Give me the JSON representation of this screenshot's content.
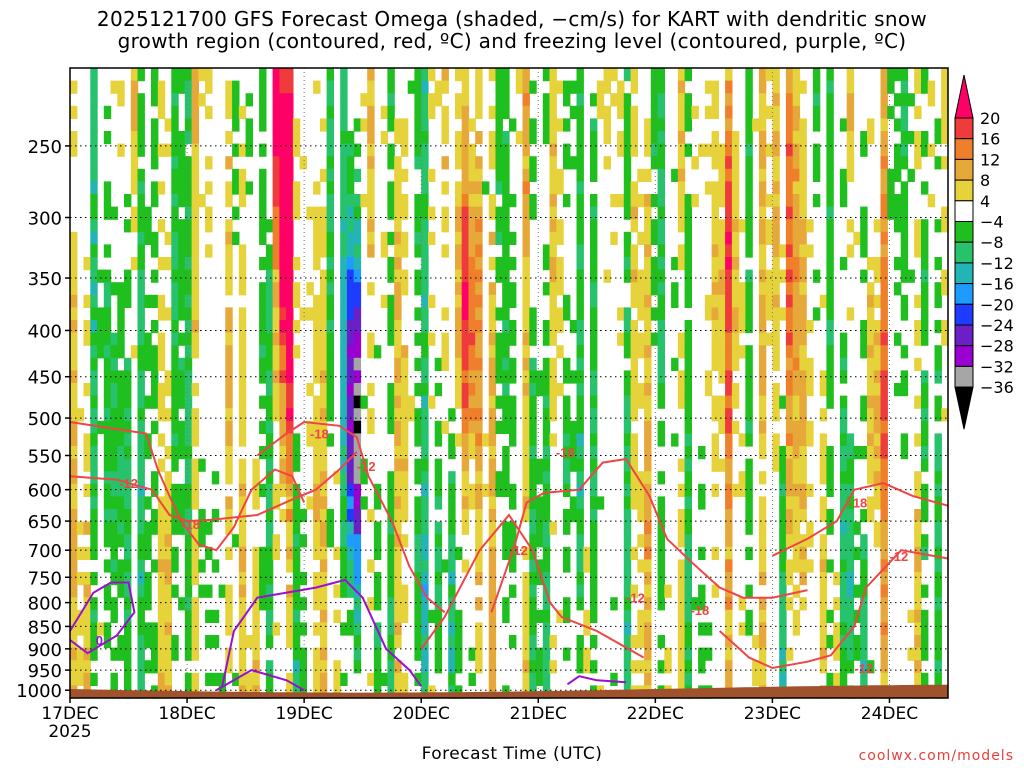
{
  "title": {
    "line1": "2025121700 GFS Forecast Omega (shaded, −cm/s) for KART with dendritic snow",
    "line2": "growth region (contoured, red, ºC) and freezing level (contoured, purple, ºC)"
  },
  "credit": "coolwx.com/models",
  "chart_data": {
    "type": "heatmap",
    "title": "2025121700 GFS Forecast Omega (shaded, −cm/s) for KART with dendritic snow growth region (contoured, red, ºC) and freezing level (contoured, purple, ºC)",
    "xlabel": "Forecast Time (UTC)",
    "x_tick_labels": [
      "17DEC",
      "18DEC",
      "19DEC",
      "20DEC",
      "21DEC",
      "22DEC",
      "23DEC",
      "24DEC"
    ],
    "x_year_label": "2025",
    "x_range_days": [
      0,
      7.5
    ],
    "y_tick_labels": [
      250,
      300,
      350,
      400,
      450,
      500,
      550,
      600,
      650,
      700,
      750,
      800,
      850,
      900,
      950,
      1000
    ],
    "y_range_hpa": [
      1020,
      205
    ],
    "y_scale": "log-pressure (inverted)",
    "grid": true,
    "colorbar": {
      "levels": [
        20,
        16,
        12,
        8,
        4,
        -4,
        -8,
        -12,
        -16,
        -20,
        -24,
        -28,
        -32,
        -36
      ],
      "colors": [
        "#ff0066",
        "#ef3b3b",
        "#ef7f2a",
        "#e7a83a",
        "#e6d23a",
        "#ffffff",
        "#1fbf1f",
        "#26c26c",
        "#23b5b5",
        "#1e9bff",
        "#1e3cff",
        "#6a1fc7",
        "#9a00d0",
        "#a6a6a6",
        "#000000"
      ],
      "placement": "right"
    },
    "dendritic_contour_labels": [
      "-12",
      "-18"
    ],
    "freezing_contour_labels": [
      "0"
    ],
    "terrain_color": "#a0522d",
    "features": [
      {
        "name": "strong ascent column",
        "x_day": 1.85,
        "p_top": 220,
        "p_bottom": 700,
        "omega": 20
      },
      {
        "name": "strong descent core",
        "x_day": 2.43,
        "p_top": 400,
        "p_bottom": 760,
        "omega": -36
      },
      {
        "name": "ascent column",
        "x_day": 3.38,
        "p_top": 260,
        "p_bottom": 700,
        "omega": 16
      },
      {
        "name": "ascent region",
        "x_day": 5.75,
        "p_top": 240,
        "p_bottom": 650,
        "omega": 12
      }
    ]
  }
}
